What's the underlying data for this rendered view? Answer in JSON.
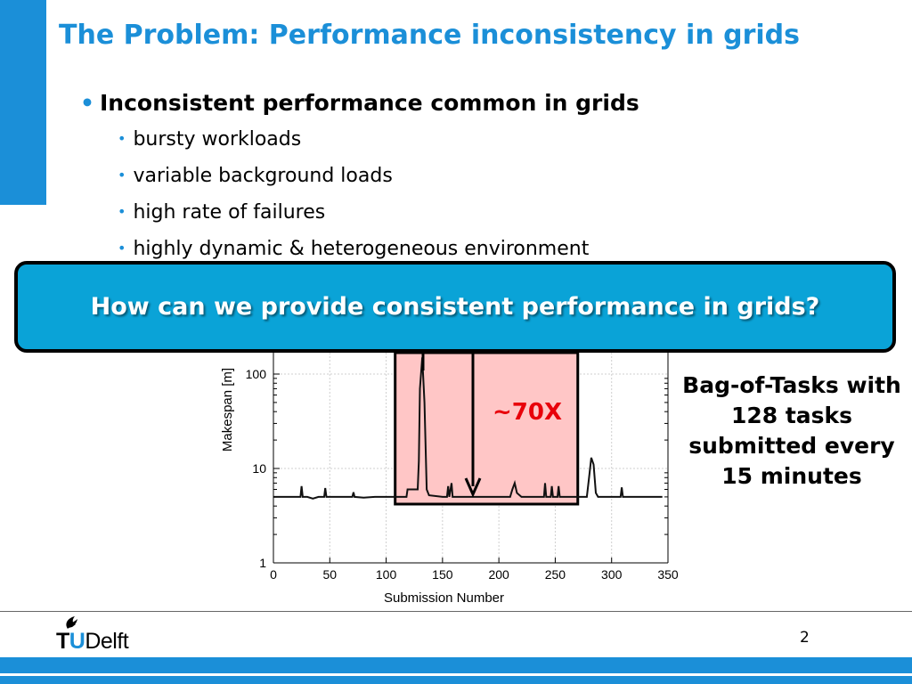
{
  "slide": {
    "title": "The Problem: Performance inconsistency in grids",
    "bullet_main": "Inconsistent performance common in grids",
    "sub_bullets": [
      "bursty workloads",
      "variable background loads",
      "high rate of failures",
      "highly dynamic & heterogeneous environment"
    ],
    "callout": "How can we provide consistent performance in grids?",
    "side_note": "Bag-of-Tasks with 128 tasks submitted every 15 minutes",
    "page_number": "2",
    "logo": {
      "t": "T",
      "u": "U",
      "d": "Delft"
    }
  },
  "chart_data": {
    "type": "line",
    "xlabel": "Submission Number",
    "ylabel": "Makespan [m]",
    "y_scale": "log",
    "xlim": [
      0,
      350
    ],
    "ylim": [
      1,
      100
    ],
    "x_ticks": [
      0,
      50,
      100,
      150,
      200,
      250,
      300,
      350
    ],
    "y_ticks": [
      1,
      10,
      100
    ],
    "grid": true,
    "annotation": "~70X",
    "highlight_x": [
      108,
      270
    ],
    "series": [
      {
        "points": [
          [
            0,
            5
          ],
          [
            10,
            5
          ],
          [
            20,
            5
          ],
          [
            24,
            5
          ],
          [
            25,
            6.5
          ],
          [
            26,
            5
          ],
          [
            30,
            5
          ],
          [
            35,
            4.8
          ],
          [
            40,
            5
          ],
          [
            45,
            5
          ],
          [
            46,
            6.2
          ],
          [
            47,
            5
          ],
          [
            50,
            5
          ],
          [
            60,
            5
          ],
          [
            70,
            5
          ],
          [
            71,
            5.6
          ],
          [
            72,
            5
          ],
          [
            80,
            4.9
          ],
          [
            90,
            5
          ],
          [
            100,
            5
          ],
          [
            110,
            5
          ],
          [
            118,
            5
          ],
          [
            119,
            6
          ],
          [
            128,
            6
          ],
          [
            129,
            12
          ],
          [
            130,
            70
          ],
          [
            132,
            150
          ],
          [
            134,
            50
          ],
          [
            136,
            6
          ],
          [
            138,
            5.2
          ],
          [
            150,
            5
          ],
          [
            154,
            5
          ],
          [
            155,
            6.5
          ],
          [
            156,
            5
          ],
          [
            158,
            7
          ],
          [
            159,
            5
          ],
          [
            165,
            5
          ],
          [
            170,
            5
          ],
          [
            180,
            5
          ],
          [
            190,
            5
          ],
          [
            200,
            5
          ],
          [
            210,
            5
          ],
          [
            212,
            6
          ],
          [
            214,
            7
          ],
          [
            216,
            5.5
          ],
          [
            220,
            5
          ],
          [
            230,
            5
          ],
          [
            240,
            5
          ],
          [
            241,
            7
          ],
          [
            242,
            5
          ],
          [
            246,
            5
          ],
          [
            247,
            6.5
          ],
          [
            248,
            5
          ],
          [
            252,
            5
          ],
          [
            253,
            6.5
          ],
          [
            254,
            5
          ],
          [
            260,
            5
          ],
          [
            268,
            5
          ],
          [
            272,
            5
          ],
          [
            278,
            5
          ],
          [
            280,
            8
          ],
          [
            282,
            13
          ],
          [
            284,
            11
          ],
          [
            286,
            5.5
          ],
          [
            288,
            5
          ],
          [
            300,
            5
          ],
          [
            308,
            5
          ],
          [
            309,
            6.3
          ],
          [
            310,
            5
          ],
          [
            320,
            5
          ],
          [
            330,
            5
          ],
          [
            340,
            5
          ],
          [
            345,
            5
          ]
        ]
      }
    ]
  }
}
